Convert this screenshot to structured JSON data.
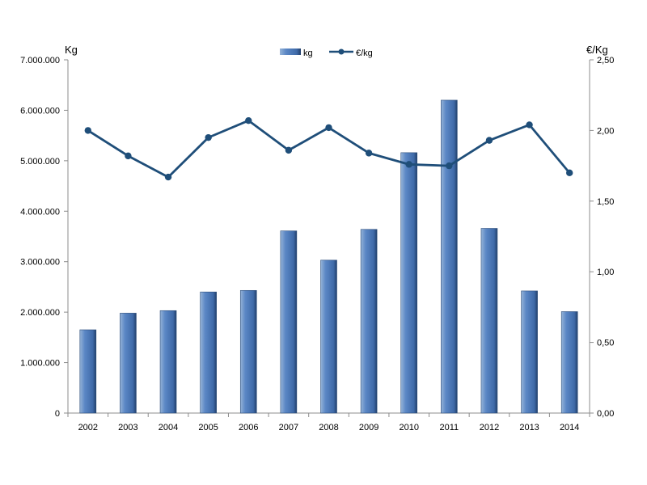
{
  "chart_data": {
    "type": "bar",
    "categories": [
      "2002",
      "2003",
      "2004",
      "2005",
      "2006",
      "2007",
      "2008",
      "2009",
      "2010",
      "2011",
      "2012",
      "2013",
      "2014"
    ],
    "series": [
      {
        "name": "kg",
        "type": "bar",
        "axis": "left",
        "values": [
          1650000,
          1980000,
          2030000,
          2400000,
          2430000,
          3610000,
          3030000,
          3640000,
          5160000,
          6200000,
          3660000,
          2420000,
          2010000
        ],
        "color": "#4f81bd"
      },
      {
        "name": "€/kg",
        "type": "line",
        "axis": "right",
        "values": [
          2.0,
          1.82,
          1.67,
          1.95,
          2.07,
          1.86,
          2.02,
          1.84,
          1.76,
          1.75,
          1.93,
          2.04,
          1.7
        ],
        "color": "#1f4e79"
      }
    ],
    "y_left": {
      "label": "Kg",
      "ylim": [
        0,
        7000000
      ],
      "ticks": [
        0,
        1000000,
        2000000,
        3000000,
        4000000,
        5000000,
        6000000,
        7000000
      ],
      "tick_labels": [
        "0",
        "1.000.000",
        "2.000.000",
        "3.000.000",
        "4.000.000",
        "5.000.000",
        "6.000.000",
        "7.000.000"
      ]
    },
    "y_right": {
      "label": "€/Kg",
      "ylim": [
        0,
        2.5
      ],
      "ticks": [
        0,
        0.5,
        1.0,
        1.5,
        2.0,
        2.5
      ],
      "tick_labels": [
        "0,00",
        "0,50",
        "1,00",
        "1,50",
        "2,00",
        "2,50"
      ]
    },
    "legend_position": "top-center",
    "grid": false
  }
}
